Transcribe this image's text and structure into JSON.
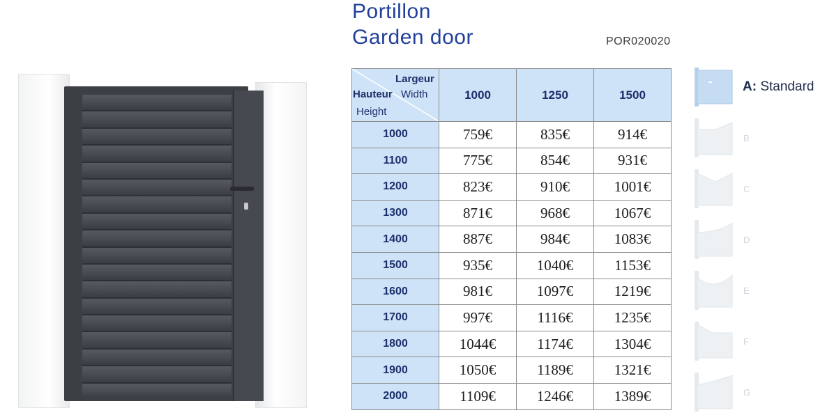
{
  "header": {
    "title_fr": "Portillon",
    "title_en": "Garden door",
    "reference": "POR020020"
  },
  "table": {
    "corner": {
      "width_fr": "Largeur",
      "width_en": "Width",
      "height_fr": "Hauteur",
      "height_en": "Height"
    },
    "widths": [
      "1000",
      "1250",
      "1500"
    ],
    "rows": [
      {
        "height": "1000",
        "prices": [
          "759€",
          "835€",
          "914€"
        ]
      },
      {
        "height": "1100",
        "prices": [
          "775€",
          "854€",
          "931€"
        ]
      },
      {
        "height": "1200",
        "prices": [
          "823€",
          "910€",
          "1001€"
        ]
      },
      {
        "height": "1300",
        "prices": [
          "871€",
          "968€",
          "1067€"
        ]
      },
      {
        "height": "1400",
        "prices": [
          "887€",
          "984€",
          "1083€"
        ]
      },
      {
        "height": "1500",
        "prices": [
          "935€",
          "1040€",
          "1153€"
        ]
      },
      {
        "height": "1600",
        "prices": [
          "981€",
          "1097€",
          "1219€"
        ]
      },
      {
        "height": "1700",
        "prices": [
          "997€",
          "1116€",
          "1235€"
        ]
      },
      {
        "height": "1800",
        "prices": [
          "1044€",
          "1174€",
          "1304€"
        ]
      },
      {
        "height": "1900",
        "prices": [
          "1050€",
          "1189€",
          "1321€"
        ]
      },
      {
        "height": "2000",
        "prices": [
          "1109€",
          "1246€",
          "1389€"
        ]
      }
    ]
  },
  "variants": {
    "a_letter": "A:",
    "a_name": "Standard",
    "others": [
      "B",
      "C",
      "D",
      "E",
      "F",
      "G"
    ]
  },
  "colors": {
    "header_blue": "#22409a",
    "cell_blue": "#cfe3f8",
    "gate_grey": "#3c4045"
  }
}
